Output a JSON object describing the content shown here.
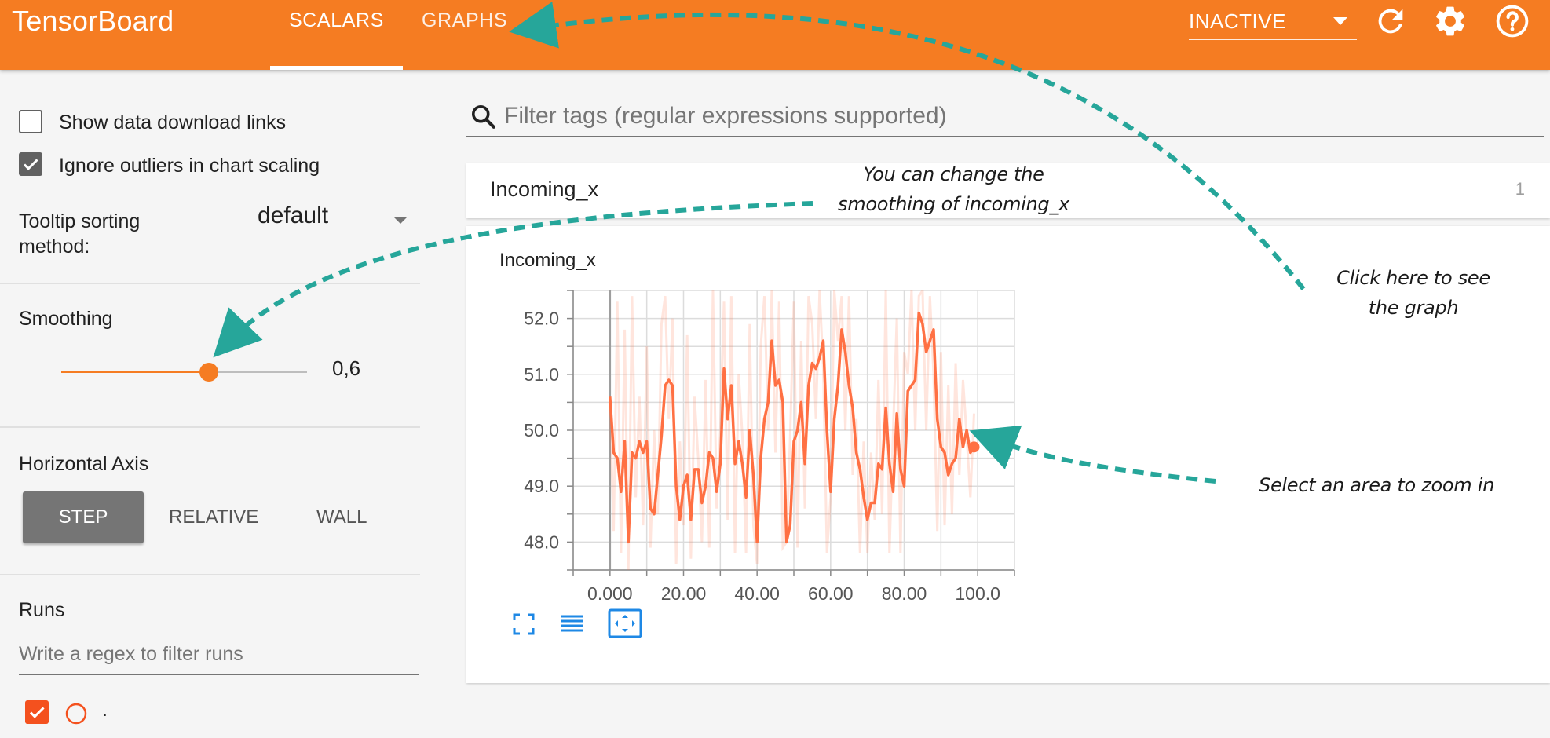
{
  "header": {
    "brand": "TensorBoard",
    "tabs": [
      {
        "label": "SCALARS",
        "active": true
      },
      {
        "label": "GRAPHS",
        "active": false
      }
    ],
    "status": "INACTIVE",
    "icons": [
      "refresh-icon",
      "gear-icon",
      "help-icon"
    ],
    "accent_color": "#f57c22"
  },
  "sidebar": {
    "show_download_links": {
      "label": "Show data download links",
      "checked": false
    },
    "ignore_outliers": {
      "label": "Ignore outliers in chart scaling",
      "checked": true
    },
    "tooltip_sorting": {
      "label": "Tooltip sorting method:",
      "value": "default"
    },
    "smoothing": {
      "title": "Smoothing",
      "value": "0,6",
      "level": 0.6
    },
    "horizontal_axis": {
      "title": "Horizontal Axis",
      "options": [
        "STEP",
        "RELATIVE",
        "WALL"
      ],
      "selected": "STEP"
    },
    "runs": {
      "title": "Runs",
      "filter_placeholder": "Write a regex to filter runs",
      "items": [
        {
          "name": ".",
          "checked": true,
          "color": "#f4511e"
        }
      ]
    }
  },
  "main": {
    "filter": {
      "placeholder": "Filter tags (regular expressions supported)"
    },
    "category": {
      "title": "Incoming_x",
      "count": "1"
    }
  },
  "chart_data": {
    "type": "line",
    "title": "Incoming_x",
    "xlabel": "",
    "ylabel": "",
    "x_ticks": [
      "0.000",
      "20.00",
      "40.00",
      "60.00",
      "80.00",
      "100.0"
    ],
    "y_ticks": [
      "48.0",
      "49.0",
      "50.0",
      "51.0",
      "52.0"
    ],
    "xlim": [
      -10,
      110
    ],
    "ylim": [
      47.5,
      52.5
    ],
    "grid": true,
    "series": [
      {
        "color": "#ff7043",
        "x": [
          0,
          1,
          2,
          3,
          4,
          5,
          6,
          7,
          8,
          9,
          10,
          11,
          12,
          13,
          14,
          15,
          16,
          17,
          18,
          19,
          20,
          21,
          22,
          23,
          24,
          25,
          26,
          27,
          28,
          29,
          30,
          31,
          32,
          33,
          34,
          35,
          36,
          37,
          38,
          39,
          40,
          41,
          42,
          43,
          44,
          45,
          46,
          47,
          48,
          49,
          50,
          51,
          52,
          53,
          54,
          55,
          56,
          57,
          58,
          59,
          60,
          61,
          62,
          63,
          64,
          65,
          66,
          67,
          68,
          69,
          70,
          71,
          72,
          73,
          74,
          75,
          76,
          77,
          78,
          79,
          80,
          81,
          82,
          83,
          84,
          85,
          86,
          87,
          88,
          89,
          90,
          91,
          92,
          93,
          94,
          95,
          96,
          97,
          98,
          99
        ],
        "smoothed": [
          50.6,
          49.6,
          49.5,
          48.9,
          49.8,
          48.0,
          49.6,
          49.5,
          49.8,
          49.6,
          49.8,
          48.6,
          48.5,
          49.2,
          49.9,
          50.8,
          50.9,
          50.8,
          49.0,
          48.4,
          49.0,
          49.2,
          48.4,
          49.3,
          49.3,
          48.7,
          49.0,
          49.6,
          49.5,
          48.9,
          49.4,
          51.1,
          50.2,
          50.8,
          49.4,
          49.8,
          49.4,
          48.8,
          50.0,
          49.2,
          48.0,
          49.5,
          50.2,
          50.5,
          51.6,
          50.8,
          50.9,
          50.5,
          48.0,
          48.3,
          49.8,
          50.0,
          50.5,
          49.4,
          50.8,
          51.2,
          51.1,
          51.3,
          51.6,
          50.0,
          48.9,
          50.2,
          50.8,
          51.8,
          51.4,
          50.8,
          50.4,
          49.6,
          49.3,
          48.8,
          48.4,
          48.7,
          48.7,
          49.4,
          49.3,
          50.4,
          49.4,
          48.9,
          50.3,
          49.3,
          49.0,
          50.7,
          50.8,
          50.9,
          52.1,
          51.9,
          51.4,
          51.6,
          51.8,
          50.2,
          49.7,
          49.6,
          49.2,
          49.4,
          49.5,
          50.2,
          49.7,
          50.0,
          49.6,
          49.7
        ],
        "raw": [
          50.5,
          48.2,
          52.3,
          47.8,
          51.8,
          47.5,
          52.4,
          48.8,
          50.6,
          48.3,
          51.5,
          47.9,
          50.0,
          48.5,
          51.9,
          52.4,
          50.2,
          52.0,
          47.6,
          49.8,
          48.3,
          51.7,
          47.7,
          50.6,
          49.5,
          48.0,
          50.9,
          47.9,
          52.5,
          48.6,
          50.0,
          52.3,
          48.4,
          52.4,
          47.8,
          51.0,
          49.9,
          47.8,
          51.9,
          48.3,
          47.6,
          51.5,
          52.4,
          50.0,
          52.5,
          49.6,
          52.3,
          47.9,
          48.0,
          49.9,
          52.3,
          47.9,
          51.6,
          48.6,
          52.4,
          51.9,
          50.2,
          52.5,
          51.1,
          47.8,
          48.8,
          52.5,
          51.6,
          52.4,
          50.0,
          52.4,
          49.2,
          50.2,
          47.8,
          49.8,
          47.8,
          49.6,
          48.4,
          50.9,
          48.5,
          52.5,
          47.8,
          50.0,
          52.0,
          47.8,
          51.4,
          51.0,
          52.5,
          50.0,
          52.4,
          52.5,
          50.0,
          52.4,
          51.0,
          48.2,
          51.4,
          48.3,
          50.8,
          48.5,
          51.2,
          49.2,
          50.9,
          49.9,
          48.8,
          50.3
        ]
      }
    ]
  },
  "annotations": {
    "smoothing_note": "You can change the\nsmoothing of incoming_x",
    "graph_note": "Click here to see\nthe graph",
    "zoom_note": "Select an area to zoom in"
  }
}
